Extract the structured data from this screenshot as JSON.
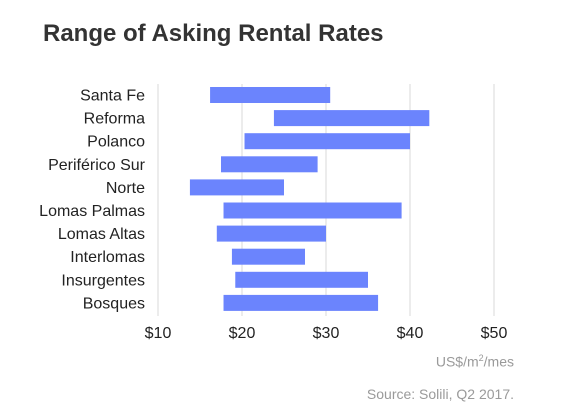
{
  "chart_data": {
    "type": "bar",
    "title": "Range of Asking Rental Rates",
    "xlabel_prefix": "US$/m",
    "xlabel_sup": "2",
    "xlabel_suffix": "/mes",
    "source": "Source: Solili, Q2 2017.",
    "xlim": [
      10,
      50
    ],
    "tick_values": [
      10,
      20,
      30,
      40,
      50
    ],
    "tick_labels": [
      "$10",
      "$20",
      "$30",
      "$40",
      "$50"
    ],
    "grid": true,
    "categories": [
      "Santa Fe",
      "Reforma",
      "Polanco",
      "Periférico Sur",
      "Norte",
      "Lomas Palmas",
      "Lomas Altas",
      "Interlomas",
      "Insurgentes",
      "Bosques"
    ],
    "series": [
      {
        "low": [
          16.2,
          23.8,
          20.3,
          17.5,
          13.8,
          17.8,
          17.0,
          18.8,
          19.2,
          17.8
        ],
        "high": [
          30.5,
          42.3,
          40.0,
          29.0,
          25.0,
          39.0,
          30.0,
          27.5,
          35.0,
          36.2
        ]
      }
    ],
    "bar_color": "#6b84fd",
    "grid_color": "#d9d9d9"
  }
}
